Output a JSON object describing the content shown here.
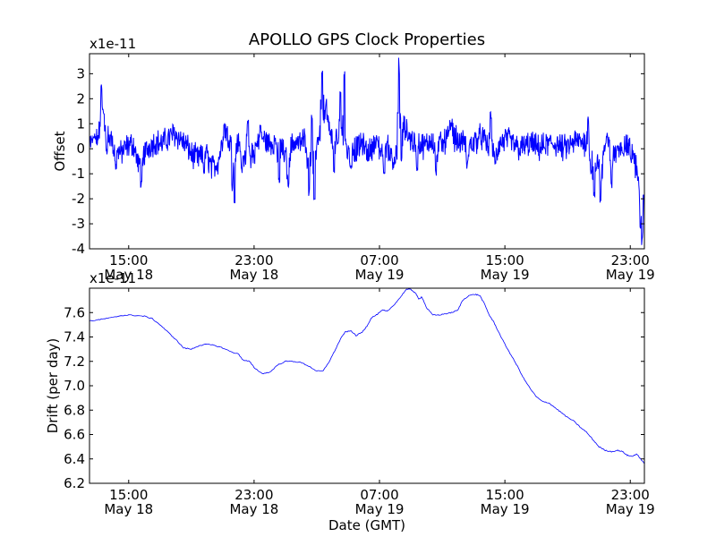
{
  "figure_title": "APOLLO GPS Clock Properties",
  "chart_data": [
    {
      "type": "line",
      "name": "offset",
      "title": "APOLLO GPS Clock Properties",
      "ylabel": "Offset",
      "xlabel": "",
      "multiplier": "x1e-11",
      "ylim": [
        -4,
        3.8
      ],
      "yticks": [
        -4,
        -3,
        -2,
        -1,
        0,
        1,
        2,
        3
      ],
      "xlim_hours": [
        12.5,
        47.9
      ],
      "xticks": [
        {
          "hour": 15,
          "time": "15:00",
          "date": "May 18"
        },
        {
          "hour": 23,
          "time": "23:00",
          "date": "May 18"
        },
        {
          "hour": 31,
          "time": "07:00",
          "date": "May 19"
        },
        {
          "hour": 39,
          "time": "15:00",
          "date": "May 19"
        },
        {
          "hour": 47,
          "time": "23:00",
          "date": "May 19"
        }
      ],
      "color": "#0000ff",
      "series": [
        {
          "name": "Offset",
          "points": [
            [
              12.5,
              0.2
            ],
            [
              12.9,
              0.3
            ],
            [
              13.1,
              0.7
            ],
            [
              13.3,
              1.2
            ],
            [
              13.5,
              0.8
            ],
            [
              13.8,
              0.4
            ],
            [
              14.1,
              0.1
            ],
            [
              14.5,
              -0.2
            ],
            [
              14.9,
              0.1
            ],
            [
              15.3,
              0.2
            ],
            [
              15.6,
              -0.6
            ],
            [
              15.9,
              -0.3
            ],
            [
              16.3,
              0.1
            ],
            [
              16.7,
              0.3
            ],
            [
              17.1,
              0.2
            ],
            [
              17.5,
              0.4
            ],
            [
              17.9,
              0.6
            ],
            [
              18.3,
              0.4
            ],
            [
              18.7,
              0.1
            ],
            [
              19.1,
              -0.3
            ],
            [
              19.5,
              -0.4
            ],
            [
              19.9,
              -0.1
            ],
            [
              20.3,
              -0.8
            ],
            [
              20.7,
              -0.5
            ],
            [
              21.1,
              0.6
            ],
            [
              21.5,
              0.5
            ],
            [
              21.9,
              0.2
            ],
            [
              22.3,
              -0.2
            ],
            [
              22.7,
              -0.6
            ],
            [
              23.1,
              0.0
            ],
            [
              23.5,
              0.5
            ],
            [
              23.9,
              0.2
            ],
            [
              24.3,
              0.3
            ],
            [
              24.7,
              0.1
            ],
            [
              25.1,
              -0.5
            ],
            [
              25.5,
              0.3
            ],
            [
              25.9,
              0.2
            ],
            [
              26.3,
              0.4
            ],
            [
              26.7,
              -0.6
            ],
            [
              27.1,
              0.5
            ],
            [
              27.5,
              1.2
            ],
            [
              27.9,
              0.6
            ],
            [
              28.3,
              0.2
            ],
            [
              28.7,
              0.1
            ],
            [
              29.1,
              -0.2
            ],
            [
              29.5,
              0.0
            ],
            [
              29.9,
              0.2
            ],
            [
              30.3,
              -0.2
            ],
            [
              30.7,
              0.3
            ],
            [
              31.1,
              -0.1
            ],
            [
              31.5,
              0.1
            ],
            [
              31.9,
              -0.5
            ],
            [
              32.2,
              0.0
            ],
            [
              32.5,
              0.9
            ],
            [
              32.8,
              0.6
            ],
            [
              33.1,
              0.3
            ],
            [
              33.5,
              0.2
            ],
            [
              33.9,
              0.1
            ],
            [
              34.3,
              0.4
            ],
            [
              34.7,
              0.1
            ],
            [
              35.1,
              0.3
            ],
            [
              35.5,
              0.6
            ],
            [
              35.9,
              0.4
            ],
            [
              36.3,
              0.2
            ],
            [
              36.7,
              0.1
            ],
            [
              37.1,
              0.3
            ],
            [
              37.5,
              0.5
            ],
            [
              37.9,
              0.1
            ],
            [
              38.3,
              -0.2
            ],
            [
              38.7,
              0.2
            ],
            [
              39.1,
              0.4
            ],
            [
              39.5,
              0.2
            ],
            [
              39.9,
              0.0
            ],
            [
              40.3,
              0.1
            ],
            [
              40.7,
              0.2
            ],
            [
              41.1,
              0.0
            ],
            [
              41.5,
              0.1
            ],
            [
              41.9,
              0.2
            ],
            [
              42.3,
              0.2
            ],
            [
              42.7,
              0.0
            ],
            [
              43.1,
              0.1
            ],
            [
              43.5,
              0.3
            ],
            [
              43.9,
              0.3
            ],
            [
              44.3,
              0.2
            ],
            [
              44.7,
              -0.4
            ],
            [
              45.1,
              -0.6
            ],
            [
              45.5,
              0.3
            ],
            [
              45.9,
              -0.4
            ],
            [
              46.3,
              0.0
            ],
            [
              46.7,
              0.2
            ],
            [
              47.1,
              -0.2
            ],
            [
              47.4,
              -0.8
            ],
            [
              47.7,
              -2.5
            ],
            [
              47.9,
              -3.2
            ]
          ],
          "spikes": [
            [
              12.8,
              0.7
            ],
            [
              13.25,
              2.7
            ],
            [
              13.4,
              1.6
            ],
            [
              13.6,
              -0.3
            ],
            [
              14.2,
              -0.9
            ],
            [
              15.8,
              -1.6
            ],
            [
              19.8,
              -1.0
            ],
            [
              21.1,
              1.2
            ],
            [
              21.6,
              -1.7
            ],
            [
              21.75,
              -2.4
            ],
            [
              22.2,
              -1.0
            ],
            [
              22.6,
              1.2
            ],
            [
              23.4,
              1.1
            ],
            [
              24.6,
              -1.4
            ],
            [
              25.2,
              -1.6
            ],
            [
              26.5,
              -1.9
            ],
            [
              26.7,
              1.5
            ],
            [
              26.85,
              -2.3
            ],
            [
              27.35,
              3.3
            ],
            [
              27.6,
              2.0
            ],
            [
              28.1,
              -1.0
            ],
            [
              28.5,
              2.3
            ],
            [
              28.75,
              3.2
            ],
            [
              29.2,
              -0.8
            ],
            [
              31.3,
              -1.0
            ],
            [
              32.25,
              3.8
            ],
            [
              32.35,
              2.2
            ],
            [
              32.4,
              -0.6
            ],
            [
              33.4,
              -0.9
            ],
            [
              34.6,
              -1.1
            ],
            [
              35.6,
              1.2
            ],
            [
              36.6,
              -0.8
            ],
            [
              38.1,
              1.5
            ],
            [
              38.4,
              -0.7
            ],
            [
              44.3,
              1.3
            ],
            [
              44.5,
              -1.0
            ],
            [
              44.7,
              -2.0
            ],
            [
              45.1,
              -2.2
            ],
            [
              45.8,
              -1.6
            ],
            [
              47.65,
              -3.2
            ],
            [
              47.75,
              -3.9
            ],
            [
              47.85,
              -2.0
            ]
          ]
        }
      ]
    },
    {
      "type": "line",
      "name": "drift",
      "title": "",
      "ylabel": "Drift (per day)",
      "xlabel": "Date (GMT)",
      "multiplier": "x1e-11",
      "ylim": [
        6.2,
        7.8
      ],
      "yticks": [
        6.2,
        6.4,
        6.6,
        6.8,
        7.0,
        7.2,
        7.4,
        7.6
      ],
      "ytick_labels": [
        "6.2",
        "6.4",
        "6.6",
        "6.8",
        "7.0",
        "7.2",
        "7.4",
        "7.6"
      ],
      "xlim_hours": [
        12.5,
        47.9
      ],
      "xticks": [
        {
          "hour": 15,
          "time": "15:00",
          "date": "May 18"
        },
        {
          "hour": 23,
          "time": "23:00",
          "date": "May 18"
        },
        {
          "hour": 31,
          "time": "07:00",
          "date": "May 19"
        },
        {
          "hour": 39,
          "time": "15:00",
          "date": "May 19"
        },
        {
          "hour": 47,
          "time": "23:00",
          "date": "May 19"
        }
      ],
      "color": "#0000ff",
      "series": [
        {
          "name": "Drift",
          "points": [
            [
              12.5,
              7.53
            ],
            [
              13.0,
              7.54
            ],
            [
              13.5,
              7.55
            ],
            [
              14.0,
              7.56
            ],
            [
              14.5,
              7.575
            ],
            [
              15.0,
              7.58
            ],
            [
              15.5,
              7.575
            ],
            [
              16.0,
              7.57
            ],
            [
              16.5,
              7.55
            ],
            [
              17.0,
              7.5
            ],
            [
              17.5,
              7.44
            ],
            [
              18.0,
              7.38
            ],
            [
              18.5,
              7.31
            ],
            [
              19.0,
              7.3
            ],
            [
              19.5,
              7.33
            ],
            [
              20.0,
              7.34
            ],
            [
              20.5,
              7.33
            ],
            [
              21.0,
              7.31
            ],
            [
              21.5,
              7.28
            ],
            [
              22.0,
              7.26
            ],
            [
              22.3,
              7.21
            ],
            [
              22.7,
              7.2
            ],
            [
              23.0,
              7.15
            ],
            [
              23.5,
              7.1
            ],
            [
              24.0,
              7.11
            ],
            [
              24.5,
              7.17
            ],
            [
              25.0,
              7.2
            ],
            [
              25.5,
              7.2
            ],
            [
              26.0,
              7.19
            ],
            [
              26.5,
              7.16
            ],
            [
              27.0,
              7.12
            ],
            [
              27.4,
              7.12
            ],
            [
              27.8,
              7.2
            ],
            [
              28.2,
              7.3
            ],
            [
              28.5,
              7.38
            ],
            [
              28.8,
              7.44
            ],
            [
              29.2,
              7.45
            ],
            [
              29.5,
              7.41
            ],
            [
              29.9,
              7.44
            ],
            [
              30.2,
              7.49
            ],
            [
              30.5,
              7.56
            ],
            [
              30.8,
              7.58
            ],
            [
              31.2,
              7.62
            ],
            [
              31.5,
              7.61
            ],
            [
              31.9,
              7.66
            ],
            [
              32.3,
              7.72
            ],
            [
              32.7,
              7.79
            ],
            [
              33.0,
              7.79
            ],
            [
              33.3,
              7.76
            ],
            [
              33.5,
              7.71
            ],
            [
              33.7,
              7.73
            ],
            [
              34.0,
              7.64
            ],
            [
              34.4,
              7.58
            ],
            [
              34.8,
              7.58
            ],
            [
              35.2,
              7.59
            ],
            [
              35.6,
              7.6
            ],
            [
              36.0,
              7.62
            ],
            [
              36.3,
              7.7
            ],
            [
              36.7,
              7.74
            ],
            [
              37.1,
              7.75
            ],
            [
              37.4,
              7.74
            ],
            [
              37.7,
              7.67
            ],
            [
              38.0,
              7.58
            ],
            [
              38.3,
              7.52
            ],
            [
              38.6,
              7.44
            ],
            [
              39.0,
              7.34
            ],
            [
              39.4,
              7.25
            ],
            [
              39.8,
              7.16
            ],
            [
              40.2,
              7.06
            ],
            [
              40.6,
              6.98
            ],
            [
              41.0,
              6.91
            ],
            [
              41.4,
              6.87
            ],
            [
              41.8,
              6.86
            ],
            [
              42.2,
              6.82
            ],
            [
              42.6,
              6.78
            ],
            [
              43.0,
              6.74
            ],
            [
              43.4,
              6.71
            ],
            [
              43.8,
              6.66
            ],
            [
              44.2,
              6.62
            ],
            [
              44.6,
              6.56
            ],
            [
              45.0,
              6.5
            ],
            [
              45.4,
              6.47
            ],
            [
              45.8,
              6.46
            ],
            [
              46.2,
              6.47
            ],
            [
              46.5,
              6.46
            ],
            [
              46.8,
              6.43
            ],
            [
              47.1,
              6.42
            ],
            [
              47.4,
              6.44
            ],
            [
              47.6,
              6.41
            ],
            [
              47.9,
              6.36
            ]
          ]
        }
      ]
    }
  ]
}
